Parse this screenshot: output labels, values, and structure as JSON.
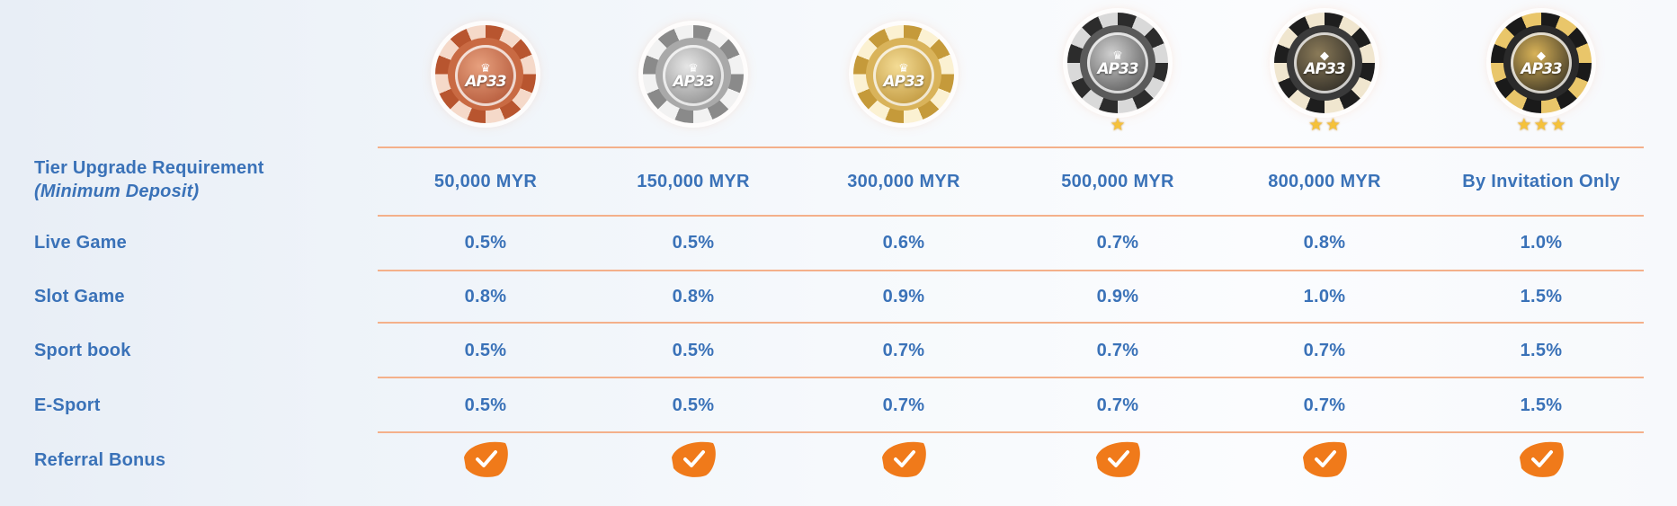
{
  "tiers": [
    {
      "chip_style": "bronze",
      "stars": 0,
      "requirement": "50,000 MYR",
      "live_game": "0.5%",
      "slot_game": "0.8%",
      "sport_book": "0.5%",
      "e_sport": "0.5%",
      "referral_bonus": true
    },
    {
      "chip_style": "silver",
      "stars": 0,
      "requirement": "150,000 MYR",
      "live_game": "0.5%",
      "slot_game": "0.8%",
      "sport_book": "0.5%",
      "e_sport": "0.5%",
      "referral_bonus": true
    },
    {
      "chip_style": "gold",
      "stars": 0,
      "requirement": "300,000 MYR",
      "live_game": "0.6%",
      "slot_game": "0.9%",
      "sport_book": "0.7%",
      "e_sport": "0.7%",
      "referral_bonus": true
    },
    {
      "chip_style": "platinum",
      "stars": 1,
      "requirement": "500,000 MYR",
      "live_game": "0.7%",
      "slot_game": "0.9%",
      "sport_book": "0.7%",
      "e_sport": "0.7%",
      "referral_bonus": true
    },
    {
      "chip_style": "diamond",
      "stars": 2,
      "requirement": "800,000 MYR",
      "live_game": "0.8%",
      "slot_game": "1.0%",
      "sport_book": "0.7%",
      "e_sport": "0.7%",
      "referral_bonus": true
    },
    {
      "chip_style": "black-gold",
      "stars": 3,
      "requirement": "By Invitation Only",
      "live_game": "1.0%",
      "slot_game": "1.5%",
      "sport_book": "1.5%",
      "e_sport": "1.5%",
      "referral_bonus": true
    }
  ],
  "chip_logo": "AP33",
  "row_labels": {
    "requirement": "Tier Upgrade Requirement",
    "requirement_note": "(Minimum Deposit)",
    "live_game": "Live Game",
    "slot_game": "Slot Game",
    "sport_book": "Sport book",
    "e_sport": "E-Sport",
    "referral_bonus": "Referral Bonus"
  },
  "colors": {
    "text_blue": "#3a72b8",
    "divider_orange": "#f4b08a",
    "check_orange": "#f07a1a",
    "star_gold": "#f5c23a"
  }
}
